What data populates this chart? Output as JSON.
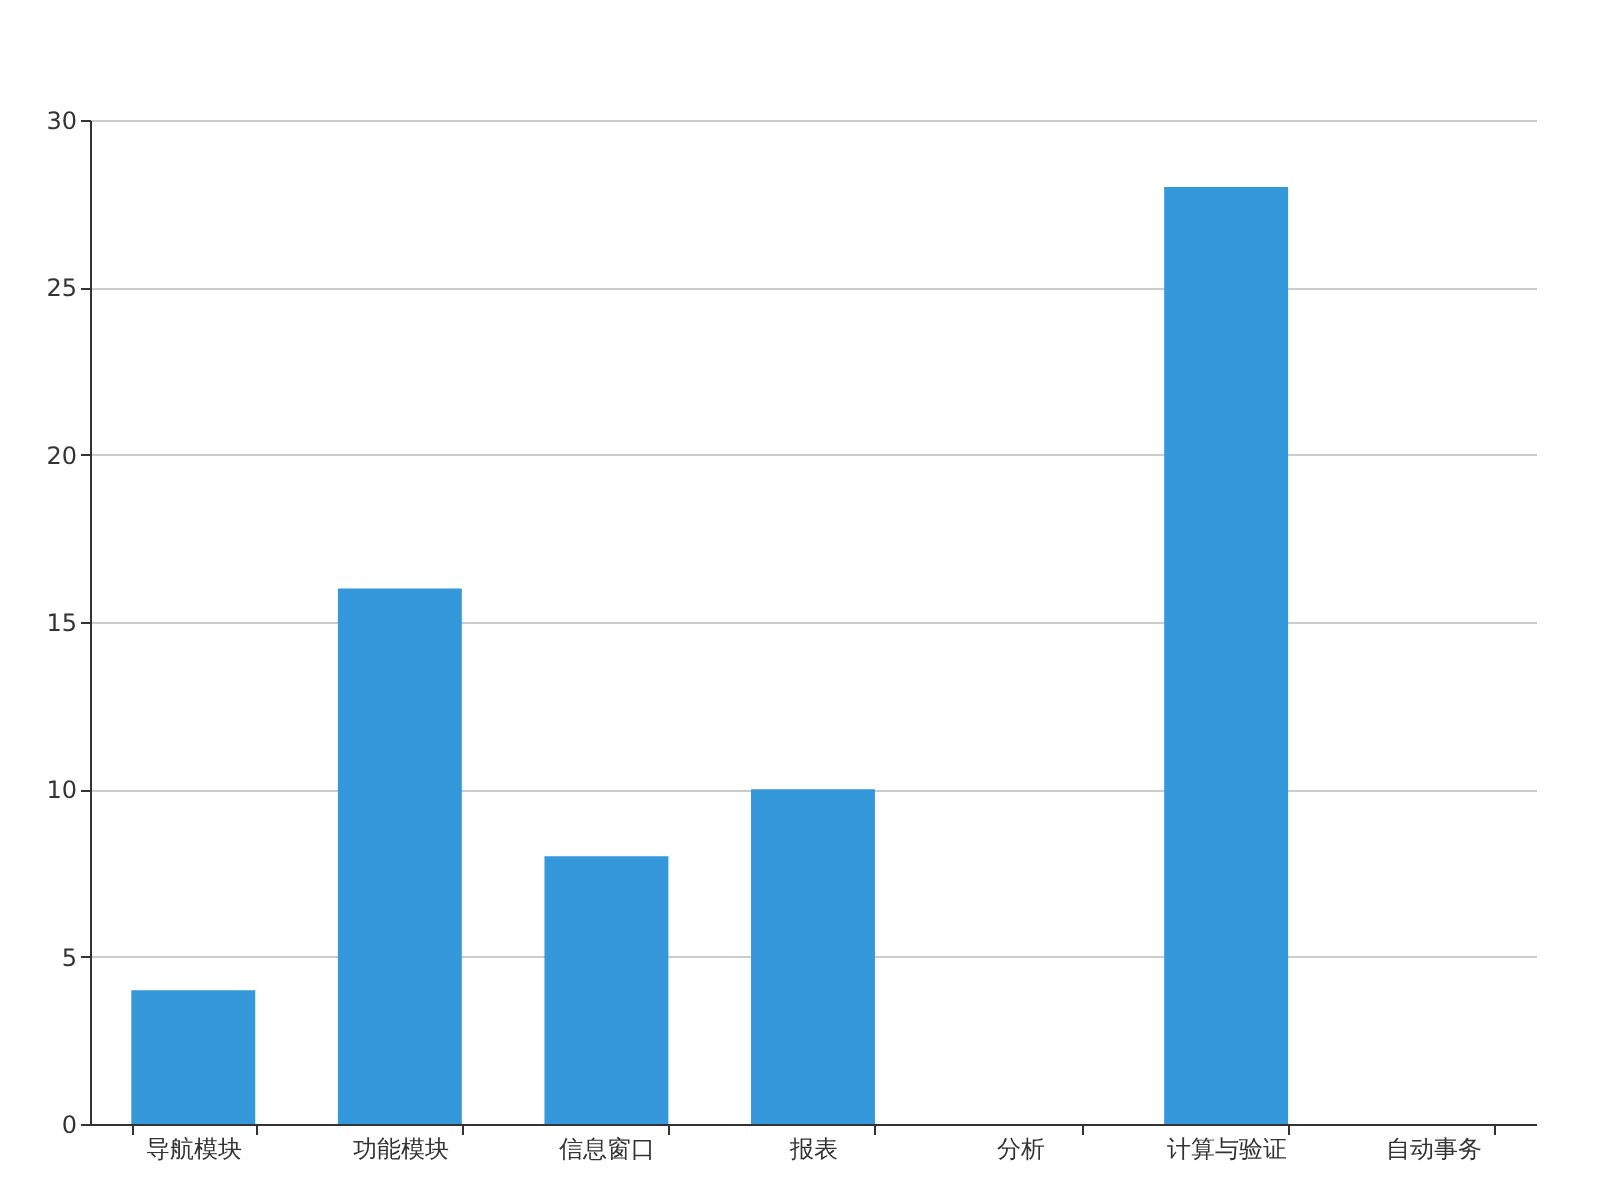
{
  "chart_data": {
    "type": "bar",
    "categories": [
      "导航模块",
      "功能模块",
      "信息窗口",
      "报表",
      "分析",
      "计算与验证",
      "自动事务"
    ],
    "values": [
      4,
      16,
      8,
      10,
      0,
      28,
      0
    ],
    "color": "#3498db",
    "ylim": [
      0,
      30
    ],
    "yticks": [
      0,
      5,
      10,
      15,
      20,
      25,
      30
    ],
    "grid": "y"
  }
}
